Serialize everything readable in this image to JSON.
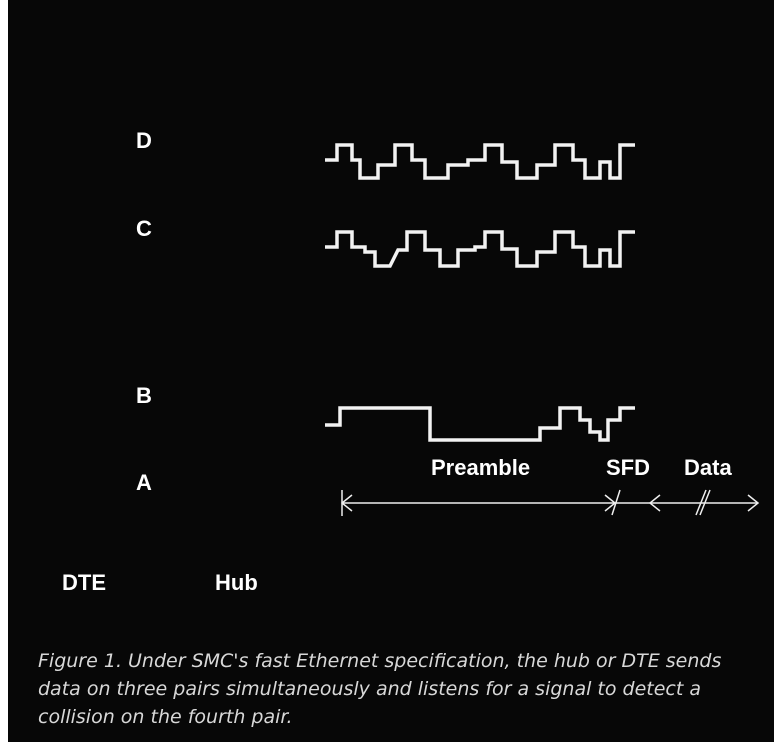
{
  "signals": {
    "labels": [
      "D",
      "C",
      "B",
      "A"
    ]
  },
  "timing": {
    "preamble": "Preamble",
    "sfd": "SFD",
    "data": "Data"
  },
  "ends": {
    "left": "DTE",
    "right": "Hub"
  },
  "caption": {
    "lines": [
      "Figure 1. Under SMC's fast Ethernet specification, the hub or DTE sends",
      "data on three pairs simultaneously and listens for a signal to detect a",
      "collision on the fourth pair."
    ]
  }
}
